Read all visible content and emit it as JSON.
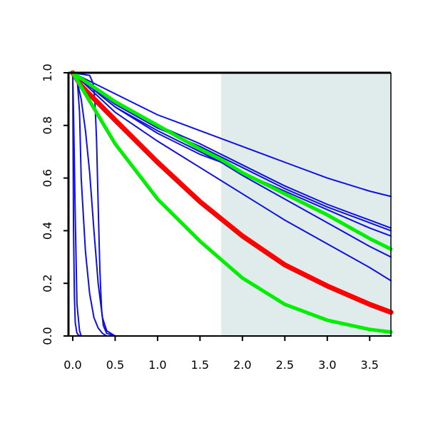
{
  "chart_data": {
    "type": "line",
    "title": "",
    "xlabel": "",
    "ylabel": "",
    "xlim": [
      -0.05,
      3.75
    ],
    "ylim": [
      0.0,
      1.0
    ],
    "x_ticks": [
      0.0,
      0.5,
      1.0,
      1.5,
      2.0,
      2.5,
      3.0,
      3.5
    ],
    "x_tick_labels": [
      "0.0",
      "0.5",
      "1.0",
      "1.5",
      "2.0",
      "2.5",
      "3.0",
      "3.5"
    ],
    "y_ticks": [
      0.0,
      0.2,
      0.4,
      0.6,
      0.8,
      1.0
    ],
    "y_tick_labels": [
      "0.0",
      "0.2",
      "0.4",
      "0.6",
      "0.8",
      "1.0"
    ],
    "grid": false,
    "legend": "none",
    "shaded_region": {
      "x_start": 1.75,
      "x_end": 3.75,
      "color": "#e0ecec"
    },
    "series": [
      {
        "color": "#1010dd",
        "width": 2,
        "x": [
          0,
          0.5,
          1.0,
          1.5,
          2.0,
          2.5,
          3.0,
          3.5,
          3.75
        ],
        "y": [
          1.0,
          0.92,
          0.84,
          0.78,
          0.72,
          0.66,
          0.6,
          0.55,
          0.53
        ]
      },
      {
        "color": "#1010dd",
        "width": 2,
        "x": [
          0,
          0.5,
          1.0,
          1.5,
          2.0,
          2.5,
          3.0,
          3.5,
          3.75
        ],
        "y": [
          1.0,
          0.89,
          0.8,
          0.73,
          0.65,
          0.57,
          0.5,
          0.44,
          0.41
        ]
      },
      {
        "color": "#1010dd",
        "width": 2,
        "x": [
          0,
          0.5,
          1.0,
          1.5,
          2.0,
          2.5,
          3.0,
          3.5,
          3.75
        ],
        "y": [
          1.0,
          0.88,
          0.79,
          0.72,
          0.64,
          0.56,
          0.49,
          0.43,
          0.4
        ]
      },
      {
        "color": "#1010dd",
        "width": 2,
        "x": [
          0,
          0.5,
          1.0,
          1.5,
          2.0,
          2.5,
          3.0,
          3.5,
          3.75
        ],
        "y": [
          1.0,
          0.87,
          0.78,
          0.7,
          0.62,
          0.55,
          0.48,
          0.41,
          0.38
        ]
      },
      {
        "color": "#1010dd",
        "width": 2,
        "x": [
          0,
          0.5,
          1.0,
          1.5,
          1.75,
          2.0,
          2.5,
          3.0,
          3.5,
          3.75
        ],
        "y": [
          1.0,
          0.87,
          0.77,
          0.69,
          0.66,
          0.61,
          0.52,
          0.43,
          0.34,
          0.3
        ]
      },
      {
        "color": "#1010dd",
        "width": 2,
        "x": [
          0,
          0.5,
          1.0,
          1.5,
          2.0,
          2.5,
          3.0,
          3.5,
          3.75
        ],
        "y": [
          1.0,
          0.85,
          0.74,
          0.64,
          0.54,
          0.44,
          0.35,
          0.26,
          0.21
        ]
      },
      {
        "color": "#1010dd",
        "width": 2,
        "x": [
          0,
          0.05,
          0.1,
          0.15,
          0.2,
          0.25,
          0.3,
          0.35,
          0.4,
          0.5,
          3.75
        ],
        "y": [
          1.0,
          0.97,
          0.9,
          0.78,
          0.62,
          0.4,
          0.2,
          0.07,
          0.02,
          0.0,
          0.0
        ]
      },
      {
        "color": "#1010dd",
        "width": 2,
        "x": [
          0,
          0.03,
          0.05,
          0.08,
          0.1,
          0.15,
          0.2,
          0.25,
          0.3,
          0.35,
          0.4,
          0.5,
          3.75
        ],
        "y": [
          1.0,
          1.0,
          0.99,
          0.85,
          0.6,
          0.32,
          0.16,
          0.07,
          0.03,
          0.01,
          0.0,
          0.0,
          0.0
        ]
      },
      {
        "color": "#1010dd",
        "width": 2,
        "x": [
          0,
          0.2,
          0.24,
          0.26,
          0.28,
          0.3,
          0.32,
          0.34,
          0.36,
          0.4,
          0.5,
          3.75
        ],
        "y": [
          1.0,
          0.99,
          0.96,
          0.9,
          0.75,
          0.5,
          0.25,
          0.1,
          0.04,
          0.01,
          0.0,
          0.0
        ]
      },
      {
        "color": "#1010dd",
        "width": 2,
        "x": [
          0,
          0.005,
          0.01,
          0.02,
          0.03,
          0.05,
          0.08,
          3.75
        ],
        "y": [
          1.0,
          0.7,
          0.4,
          0.15,
          0.05,
          0.01,
          0.0,
          0.0
        ]
      },
      {
        "color": "#1010dd",
        "width": 2,
        "x": [
          0,
          0.01,
          0.03,
          0.05,
          0.08,
          0.1,
          3.75
        ],
        "y": [
          1.0,
          0.85,
          0.45,
          0.12,
          0.02,
          0.0,
          0.0
        ]
      },
      {
        "color": "#ff0000",
        "width": 7,
        "x": [
          0,
          0.1,
          0.5,
          1.0,
          1.5,
          2.0,
          2.5,
          3.0,
          3.5,
          3.75
        ],
        "y": [
          1.0,
          0.95,
          0.82,
          0.66,
          0.51,
          0.38,
          0.27,
          0.19,
          0.12,
          0.09
        ]
      },
      {
        "color": "#00ee00",
        "width": 5,
        "x": [
          0,
          0.5,
          1.0,
          1.5,
          1.75,
          2.0,
          2.5,
          3.0,
          3.5,
          3.75
        ],
        "y": [
          1.0,
          0.89,
          0.8,
          0.71,
          0.67,
          0.62,
          0.54,
          0.46,
          0.37,
          0.33
        ]
      },
      {
        "color": "#00ee00",
        "width": 5,
        "x": [
          0,
          0.5,
          1.0,
          1.5,
          2.0,
          2.5,
          3.0,
          3.5,
          3.75
        ],
        "y": [
          1.0,
          0.73,
          0.52,
          0.36,
          0.22,
          0.12,
          0.06,
          0.025,
          0.015
        ]
      }
    ]
  }
}
